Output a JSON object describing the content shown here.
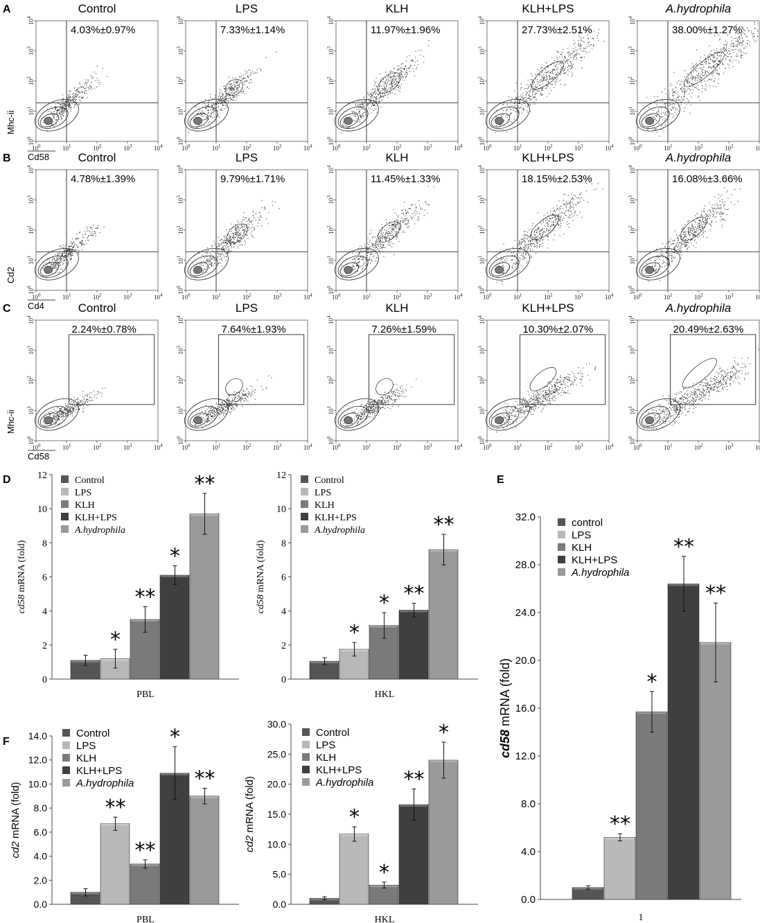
{
  "panels": {
    "A": {
      "letter": "A",
      "x_axis": "Cd58",
      "y_axis": "Mhc-ii",
      "gate": "quadrant",
      "plots": [
        {
          "title": "Control",
          "pct": "4.03%±0.97%",
          "spread": 0.2
        },
        {
          "title": "LPS",
          "pct": "7.33%±1.14%",
          "spread": 0.35
        },
        {
          "title": "KLH",
          "pct": "11.97%±1.96%",
          "spread": 0.5
        },
        {
          "title": "KLH+LPS",
          "pct": "27.73%±2.51%",
          "spread": 0.75
        },
        {
          "title": "A.hydrophila",
          "pct": "38.00%±1.27%",
          "spread": 0.95,
          "italic": true
        }
      ]
    },
    "B": {
      "letter": "B",
      "x_axis": "Cd4",
      "y_axis": "Cd2",
      "gate": "quadrant",
      "plots": [
        {
          "title": "Control",
          "pct": "4.78%±1.39%",
          "spread": 0.2
        },
        {
          "title": "LPS",
          "pct": "9.79%±1.71%",
          "spread": 0.45
        },
        {
          "title": "KLH",
          "pct": "11.45%±1.33%",
          "spread": 0.5
        },
        {
          "title": "KLH+LPS",
          "pct": "18.15%±2.53%",
          "spread": 0.65
        },
        {
          "title": "A.hydrophila",
          "pct": "16.08%±3.66%",
          "spread": 0.6,
          "italic": true
        }
      ]
    },
    "C": {
      "letter": "C",
      "x_axis": "Cd58",
      "y_axis": "Mhc-ii",
      "gate": "box",
      "plots": [
        {
          "title": "Control",
          "pct": "2.24%±0.78%",
          "spread": 0.2
        },
        {
          "title": "LPS",
          "pct": "7.64%±1.93%",
          "spread": 0.35
        },
        {
          "title": "KLH",
          "pct": "7.26%±1.59%",
          "spread": 0.35
        },
        {
          "title": "KLH+LPS",
          "pct": "10.30%±2.07%",
          "spread": 0.6
        },
        {
          "title": "A.hydrophila",
          "pct": "20.49%±2.63%",
          "spread": 0.8,
          "italic": true
        }
      ]
    }
  },
  "log_ticks": {
    "base": "10",
    "exps": [
      "0",
      "1",
      "2",
      "3",
      "4"
    ]
  },
  "chart_data": [
    {
      "panel": "D",
      "type": "bar",
      "title": "",
      "xlabel": "PBL",
      "ylabel": "cd58 mRNA (fold)",
      "ylabel_italic": "cd58",
      "ylabel_rest": " mRNA (fold)",
      "ylim": [
        0,
        12
      ],
      "yticks": [
        "0",
        "2",
        "4",
        "6",
        "8",
        "10",
        "12"
      ],
      "categories": [
        "Control",
        "LPS",
        "KLH",
        "KLH+LPS",
        "A.hydrophila"
      ],
      "values": [
        1.1,
        1.2,
        3.5,
        6.1,
        9.7
      ],
      "errors": [
        0.3,
        0.55,
        0.75,
        0.55,
        1.2
      ],
      "significance": [
        "",
        "*",
        "**",
        "*",
        "**"
      ]
    },
    {
      "panel": "D",
      "type": "bar",
      "title": "",
      "xlabel": "HKL",
      "ylabel": "cd58 mRNA (fold)",
      "ylabel_italic": "cd58",
      "ylabel_rest": " mRNA (fold)",
      "ylim": [
        0,
        12
      ],
      "yticks": [
        "0",
        "2",
        "4",
        "6",
        "8",
        "10",
        "12"
      ],
      "categories": [
        "Control",
        "LPS",
        "KLH",
        "KLH+LPS",
        "A.hydrophila"
      ],
      "values": [
        1.05,
        1.75,
        3.15,
        4.05,
        7.6
      ],
      "errors": [
        0.2,
        0.4,
        0.75,
        0.4,
        0.9
      ],
      "significance": [
        "",
        "*",
        "*",
        "**",
        "**"
      ]
    },
    {
      "panel": "E",
      "type": "bar",
      "title": "",
      "xlabel": "1",
      "ylabel": "cd58 mRNA (fold)",
      "ylabel_italic": "cd58",
      "ylabel_rest": " mRNA (fold)",
      "ylim": [
        0,
        32
      ],
      "yticks": [
        "0.0",
        "4.0",
        "8.0",
        "12.0",
        "16.0",
        "20.0",
        "24.0",
        "28.0",
        "32.0"
      ],
      "categories": [
        "control",
        "LPS",
        "KLH",
        "KLH+LPS",
        "A.hydrophila"
      ],
      "values": [
        1.0,
        5.2,
        15.7,
        26.4,
        21.5
      ],
      "errors": [
        0.15,
        0.3,
        1.7,
        2.3,
        3.3
      ],
      "significance": [
        "",
        "**",
        "*",
        "**",
        "**"
      ]
    },
    {
      "panel": "F",
      "type": "bar",
      "title": "",
      "xlabel": "PBL",
      "ylabel": "cd2 mRNA (fold)",
      "ylabel_italic": "cd2",
      "ylabel_rest": " mRNA (fold)",
      "ylim": [
        0,
        14
      ],
      "yticks": [
        "0.0",
        "2.0",
        "4.0",
        "6.0",
        "8.0",
        "10.0",
        "12.0",
        "14.0"
      ],
      "categories": [
        "Control",
        "LPS",
        "KLH",
        "KLH+LPS",
        "A.hydrophila"
      ],
      "values": [
        1.0,
        6.7,
        3.35,
        10.9,
        9.0
      ],
      "errors": [
        0.3,
        0.55,
        0.35,
        2.2,
        0.65
      ],
      "significance": [
        "",
        "**",
        "**",
        "*",
        "**"
      ]
    },
    {
      "panel": "F",
      "type": "bar",
      "title": "",
      "xlabel": "HKL",
      "ylabel": "cd2 mRNA (fold)",
      "ylabel_italic": "cd2",
      "ylabel_rest": " mRNA (fold)",
      "ylim": [
        0,
        30
      ],
      "yticks": [
        "0.0",
        "5.0",
        "10.0",
        "15.0",
        "20.0",
        "25.0",
        "30.0"
      ],
      "categories": [
        "Control",
        "LPS",
        "KLH",
        "KLH+LPS",
        "A.hydrophila"
      ],
      "values": [
        1.0,
        11.7,
        3.2,
        16.6,
        24.0
      ],
      "errors": [
        0.25,
        1.2,
        0.5,
        2.6,
        3.0
      ],
      "significance": [
        "",
        "*",
        "*",
        "**",
        "*"
      ]
    }
  ],
  "bar_colors": [
    "#555555",
    "#b8b8b8",
    "#7a7a7a",
    "#3f3f3f",
    "#9a9a9a"
  ]
}
